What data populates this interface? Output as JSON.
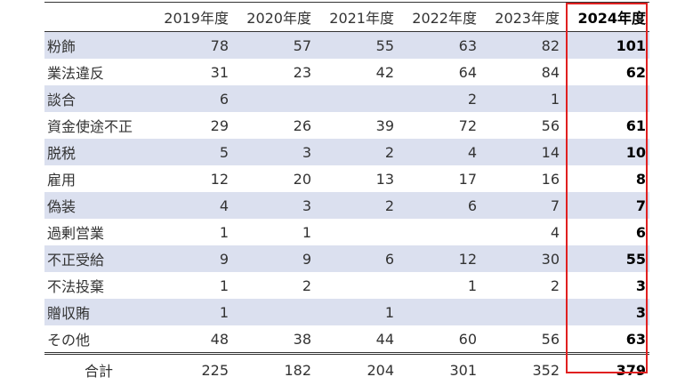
{
  "table": {
    "columns": [
      "",
      "2019年度",
      "2020年度",
      "2021年度",
      "2022年度",
      "2023年度",
      "2024年度"
    ],
    "rows": [
      {
        "label": "粉飾",
        "values": [
          "78",
          "57",
          "55",
          "63",
          "82",
          "101"
        ]
      },
      {
        "label": "業法違反",
        "values": [
          "31",
          "23",
          "42",
          "64",
          "84",
          "62"
        ]
      },
      {
        "label": "談合",
        "values": [
          "6",
          "",
          "",
          "2",
          "1",
          ""
        ]
      },
      {
        "label": "資金使途不正",
        "values": [
          "29",
          "26",
          "39",
          "72",
          "56",
          "61"
        ]
      },
      {
        "label": "脱税",
        "values": [
          "5",
          "3",
          "2",
          "4",
          "14",
          "10"
        ]
      },
      {
        "label": "雇用",
        "values": [
          "12",
          "20",
          "13",
          "17",
          "16",
          "8"
        ]
      },
      {
        "label": "偽装",
        "values": [
          "4",
          "3",
          "2",
          "6",
          "7",
          "7"
        ]
      },
      {
        "label": "過剰営業",
        "values": [
          "1",
          "1",
          "",
          "",
          "4",
          "6"
        ]
      },
      {
        "label": "不正受給",
        "values": [
          "9",
          "9",
          "6",
          "12",
          "30",
          "55"
        ]
      },
      {
        "label": "不法投棄",
        "values": [
          "1",
          "2",
          "",
          "1",
          "2",
          "3"
        ]
      },
      {
        "label": "贈収賄",
        "values": [
          "1",
          "",
          "1",
          "",
          "",
          "3"
        ]
      },
      {
        "label": "その他",
        "values": [
          "48",
          "38",
          "44",
          "60",
          "56",
          "63"
        ]
      }
    ],
    "total": {
      "label": "合計",
      "values": [
        "225",
        "182",
        "204",
        "301",
        "352",
        "379"
      ]
    },
    "highlight_color": "#e02020",
    "stripe_color": "#dbe0ef"
  }
}
